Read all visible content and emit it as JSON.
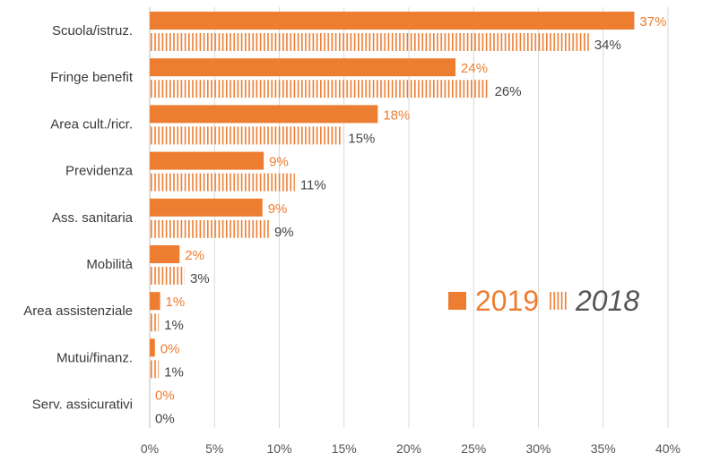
{
  "colors": {
    "series_2019": "#ED7D31",
    "series_2018": "#ED7D31",
    "grid": "#D9D9D9",
    "axis": "#BFBFBF"
  },
  "chart_data": {
    "type": "bar",
    "orientation": "horizontal",
    "categories": [
      "Scuola/istruz.",
      "Fringe benefit",
      "Area cult./ricr.",
      "Previdenza",
      "Ass. sanitaria",
      "Mobilità",
      "Area assistenziale",
      "Mutui/finanz.",
      "Serv. assicurativi"
    ],
    "series": [
      {
        "name": "2019",
        "style": "solid",
        "values": [
          37.4,
          23.6,
          17.6,
          8.8,
          8.7,
          2.3,
          0.8,
          0.4,
          0
        ],
        "labels": [
          "37%",
          "24%",
          "18%",
          "9%",
          "9%",
          "2%",
          "1%",
          "0%",
          "0%"
        ]
      },
      {
        "name": "2018",
        "style": "hatched",
        "values": [
          33.9,
          26.2,
          14.9,
          11.2,
          9.2,
          2.7,
          0.7,
          0.7,
          0
        ],
        "labels": [
          "34%",
          "26%",
          "15%",
          "11%",
          "9%",
          "3%",
          "1%",
          "1%",
          "0%"
        ]
      }
    ],
    "xlim": [
      0,
      40
    ],
    "x_ticks": [
      "0%",
      "5%",
      "10%",
      "15%",
      "20%",
      "25%",
      "30%",
      "35%",
      "40%"
    ],
    "grid": true,
    "legend_position": "center-right"
  }
}
